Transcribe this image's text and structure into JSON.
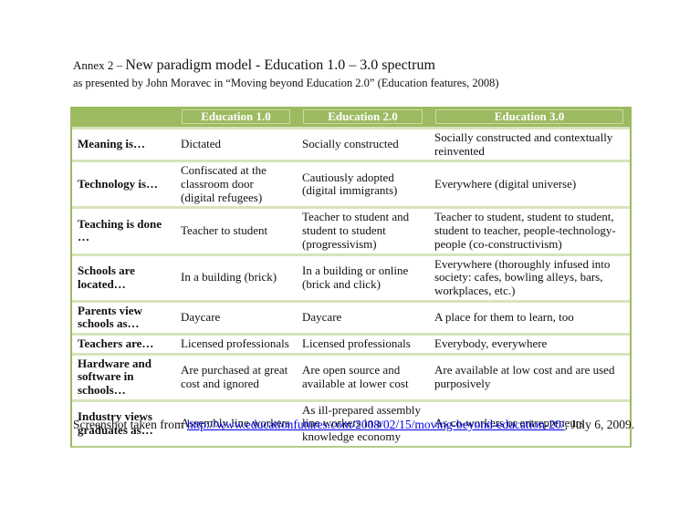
{
  "title": {
    "prefix": "Annex 2 – ",
    "main": "New paradigm model - Education 1.0 – 3.0 spectrum",
    "subtitle": "as presented by John Moravec in “Moving beyond Education 2.0” (Education features, 2008)"
  },
  "table": {
    "columns": [
      "",
      "Education 1.0",
      "Education 2.0",
      "Education 3.0"
    ],
    "rows": [
      {
        "label": "Meaning is…",
        "cells": [
          "Dictated",
          "Socially constructed",
          "Socially constructed and contextually reinvented"
        ]
      },
      {
        "label": "Technology is…",
        "cells": [
          "Confiscated at the classroom door (digital refugees)",
          "Cautiously adopted (digital immigrants)",
          "Everywhere (digital universe)"
        ]
      },
      {
        "label": "Teaching is done …",
        "cells": [
          "Teacher to student",
          "Teacher to student and student to student (progressivism)",
          "Teacher to student, student to student, student to teacher, people-technology-people (co-constructivism)"
        ]
      },
      {
        "label": "Schools are located…",
        "cells": [
          "In a building (brick)",
          "In a building or online (brick and click)",
          "Everywhere (thoroughly infused into society: cafes, bowling alleys, bars, workplaces, etc.)"
        ]
      },
      {
        "label": "Parents view schools as…",
        "cells": [
          "Daycare",
          "Daycare",
          "A place for them to learn, too"
        ]
      },
      {
        "label": "Teachers are…",
        "cells": [
          "Licensed professionals",
          "Licensed professionals",
          "Everybody, everywhere"
        ]
      },
      {
        "label": "Hardware and software in schools…",
        "cells": [
          "Are purchased at great cost and ignored",
          "Are open source and available at lower cost",
          "Are available at low cost and are used purposively"
        ]
      },
      {
        "label": "Industry views graduates as…",
        "cells": [
          "Assembly line workers",
          "As ill-prepared assembly line workers in a knowledge economy",
          "As co-workers or entrepreneurs"
        ]
      }
    ]
  },
  "footer": {
    "prefix": "Screenshot taken from ",
    "link_text": "http://www.educationfutures.com/2008/02/15/moving-beyond-education-20/",
    "suffix": ", July 6, 2009."
  },
  "colors": {
    "header_green": "#9cbb61",
    "row_separator_green": "#d7e4bc",
    "header_box_border": "#c8daa2",
    "link_blue": "#0000ee"
  }
}
